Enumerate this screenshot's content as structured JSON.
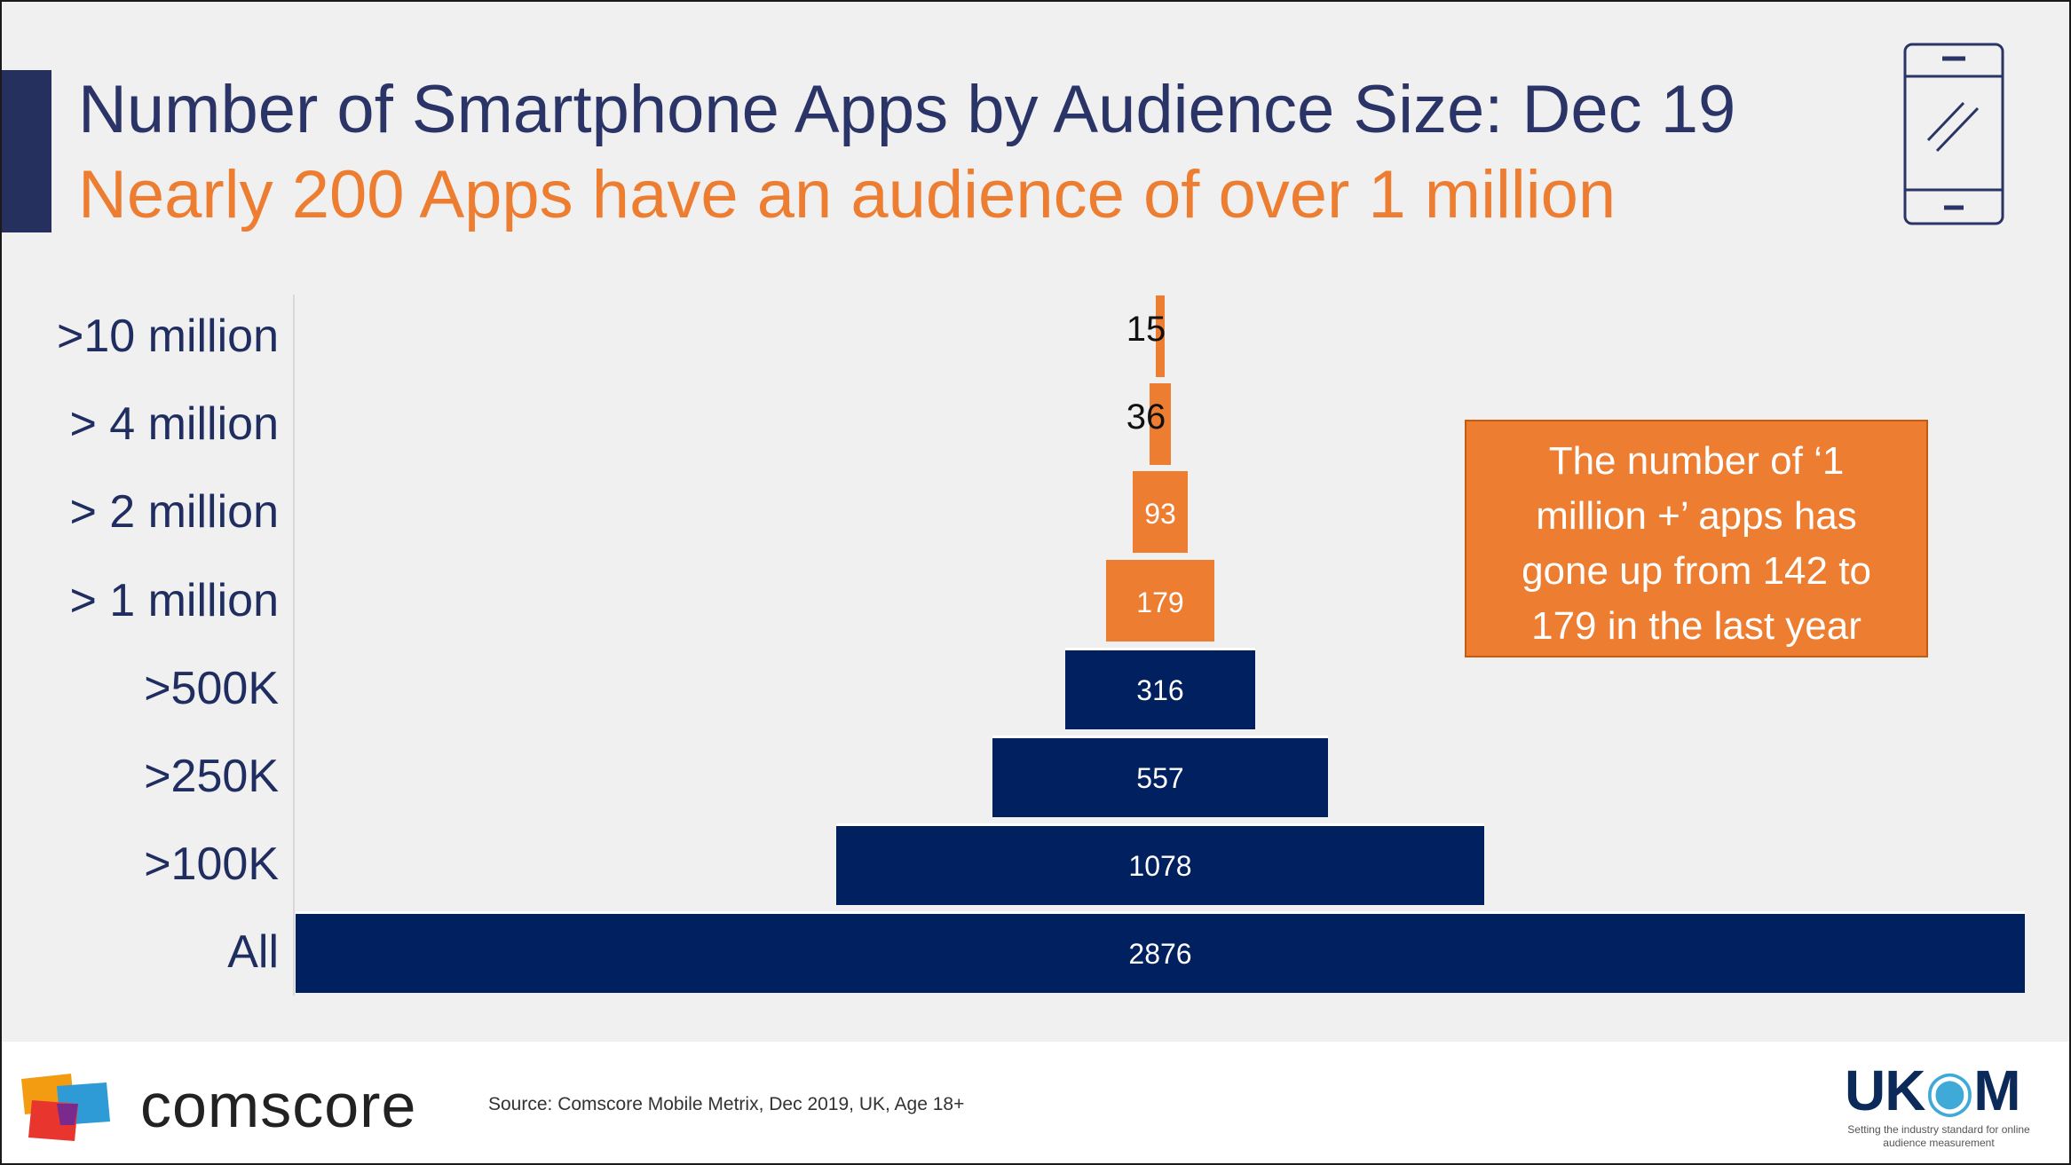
{
  "header": {
    "title": "Number of Smartphone Apps by Audience Size: Dec 19",
    "subtitle": "Nearly 200 Apps have an audience of over 1 million"
  },
  "colors": {
    "accent": "#ed7d31",
    "navy": "#002060",
    "title": "#2b3466"
  },
  "icons": {
    "header_icon": "smartphone-icon"
  },
  "chart_data": {
    "type": "bar",
    "orientation": "horizontal-centered",
    "categories": [
      ">10 million",
      "> 4 million",
      "> 2 million",
      "> 1 million",
      ">500K",
      ">250K",
      ">100K",
      "All"
    ],
    "values": [
      15,
      36,
      93,
      179,
      316,
      557,
      1078,
      2876
    ],
    "colors": [
      "#ed7d31",
      "#ed7d31",
      "#ed7d31",
      "#ed7d31",
      "#002060",
      "#002060",
      "#002060",
      "#002060"
    ],
    "xlim": [
      0,
      2876
    ],
    "grid": false,
    "legend": "none"
  },
  "callout": {
    "lines": [
      "The number of ‘1",
      "million +’ apps has",
      "gone up from 142 to",
      "179 in the last year"
    ]
  },
  "footer": {
    "brand": "comscore",
    "source": "Source: Comscore Mobile Metrix, Dec 2019, UK, Age 18+",
    "ukom_name_start": "UK",
    "ukom_name_end": "M",
    "ukom_tagline": "Setting the industry standard for online audience measurement"
  }
}
